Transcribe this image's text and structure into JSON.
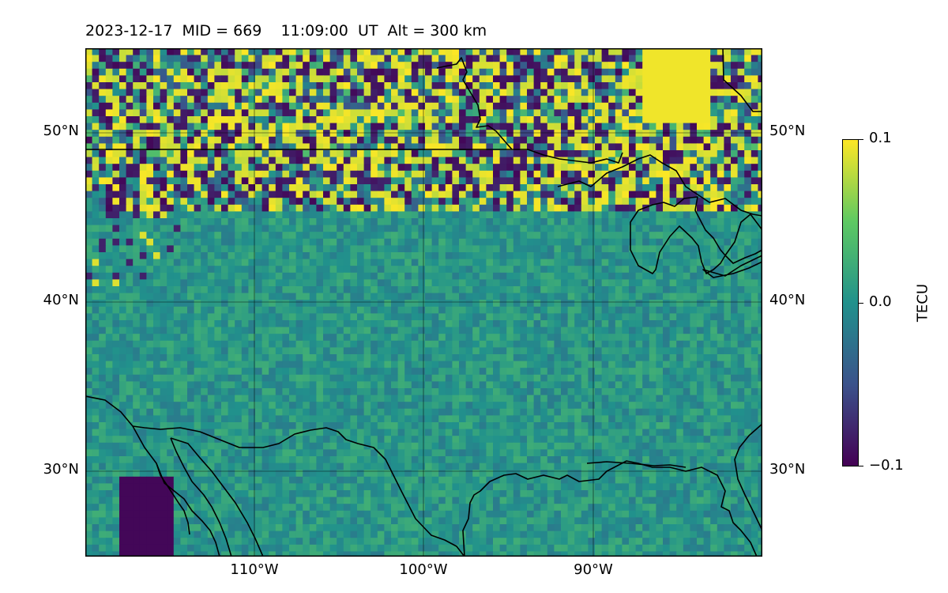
{
  "title": "2023-12-17  MID = 669    11:09:00  UT  Alt = 300 km",
  "map": {
    "projection": "PlateCarree",
    "lon_range": [
      -120,
      -80
    ],
    "lat_range": [
      25,
      55
    ],
    "gridlines": true,
    "coastlines": true,
    "lat_ticks": [
      {
        "value": 50,
        "label": "50°N"
      },
      {
        "value": 40,
        "label": "40°N"
      },
      {
        "value": 30,
        "label": "30°N"
      }
    ],
    "lon_ticks": [
      {
        "value": -110,
        "label": "110°W"
      },
      {
        "value": -100,
        "label": "100°W"
      },
      {
        "value": -90,
        "label": "90°W"
      }
    ],
    "field": "TEC perturbation (TECU)",
    "colormap": "viridis"
  },
  "colorbar": {
    "label": "TECU",
    "min": -0.1,
    "max": 0.1,
    "ticks": [
      {
        "value": 0.1,
        "label": "0.1"
      },
      {
        "value": 0.0,
        "label": "0.0"
      },
      {
        "value": -0.1,
        "label": "−0.1"
      }
    ],
    "colors": [
      "#440154",
      "#3b528b",
      "#21918c",
      "#5ec962",
      "#fde725"
    ]
  }
}
